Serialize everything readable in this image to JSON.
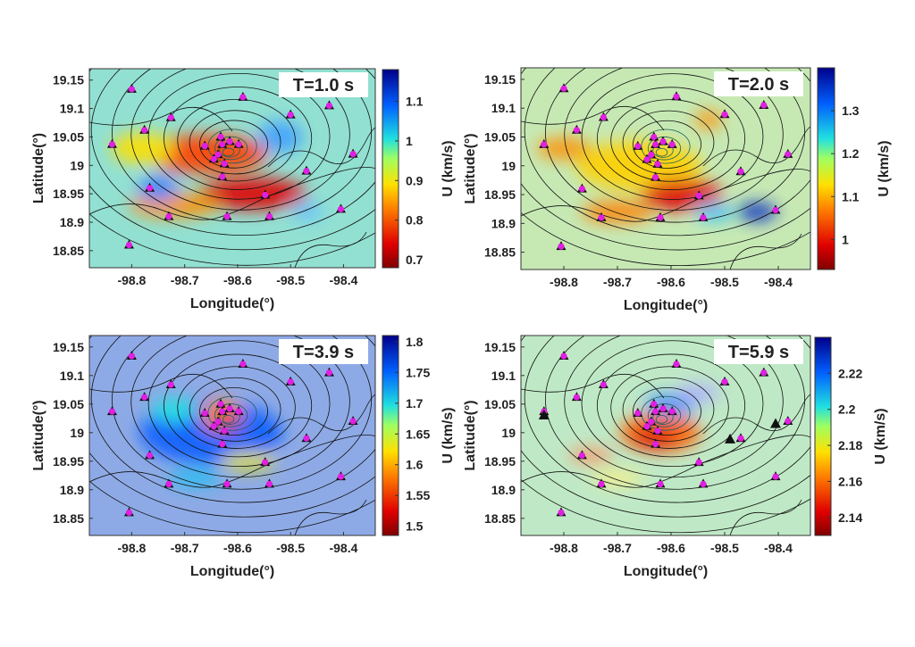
{
  "stations": {
    "lon": [
      -98.8,
      -98.59,
      -98.726,
      -98.776,
      -98.837,
      -98.5,
      -98.427,
      -98.382,
      -98.47,
      -98.548,
      -98.405,
      -98.766,
      -98.73,
      -98.62,
      -98.54,
      -98.805,
      -98.632,
      -98.629,
      -98.615,
      -98.598,
      -98.662,
      -98.637,
      -98.625,
      -98.629,
      -98.645
    ],
    "lat": [
      19.134,
      19.12,
      19.084,
      19.062,
      19.037,
      19.089,
      19.105,
      19.02,
      18.99,
      18.948,
      18.923,
      18.96,
      18.91,
      18.91,
      18.91,
      18.86,
      19.05,
      19.037,
      19.042,
      19.037,
      19.034,
      19.019,
      19.003,
      18.98,
      19.011
    ]
  },
  "chart_data": [
    {
      "type": "map",
      "title": "T=1.0 s",
      "xlabel": "Longitude(°)",
      "ylabel": "Latitude(°)",
      "colorbar_label": "U (km/s)",
      "xlim": [
        -98.88,
        -98.34
      ],
      "ylim": [
        18.82,
        19.17
      ],
      "xticks": [
        -98.8,
        -98.7,
        -98.6,
        -98.5,
        -98.4
      ],
      "yticks": [
        18.85,
        18.9,
        18.95,
        19,
        19.05,
        19.1,
        19.15
      ],
      "clim": [
        0.68,
        1.18
      ],
      "cticks": [
        0.7,
        0.8,
        0.9,
        1,
        1.1
      ],
      "background": "#92e0d2"
    },
    {
      "type": "map",
      "title": "T=2.0 s",
      "xlabel": "Longitude(°)",
      "ylabel": "Latitude(°)",
      "colorbar_label": "U (km/s)",
      "xlim": [
        -98.88,
        -98.34
      ],
      "ylim": [
        18.82,
        19.17
      ],
      "xticks": [
        -98.8,
        -98.7,
        -98.6,
        -98.5,
        -98.4
      ],
      "yticks": [
        18.85,
        18.9,
        18.95,
        19,
        19.05,
        19.1,
        19.15
      ],
      "clim": [
        0.93,
        1.4
      ],
      "cticks": [
        1,
        1.1,
        1.2,
        1.3
      ],
      "background": "#c6e9b4"
    },
    {
      "type": "map",
      "title": "T=3.9 s",
      "xlabel": "Longitude(°)",
      "ylabel": "Latitude(°)",
      "colorbar_label": "U (km/s)",
      "xlim": [
        -98.88,
        -98.34
      ],
      "ylim": [
        18.82,
        19.17
      ],
      "xticks": [
        -98.8,
        -98.7,
        -98.6,
        -98.5,
        -98.4
      ],
      "yticks": [
        18.85,
        18.9,
        18.95,
        19,
        19.05,
        19.1,
        19.15
      ],
      "clim": [
        1.485,
        1.81
      ],
      "cticks": [
        1.5,
        1.55,
        1.6,
        1.65,
        1.7,
        1.75,
        1.8
      ],
      "background": "#8eaae6"
    },
    {
      "type": "map",
      "title": "T=5.9 s",
      "xlabel": "Longitude(°)",
      "ylabel": "Latitude(°)",
      "colorbar_label": "U (km/s)",
      "xlim": [
        -98.88,
        -98.34
      ],
      "ylim": [
        18.82,
        19.17
      ],
      "xticks": [
        -98.8,
        -98.7,
        -98.6,
        -98.5,
        -98.4
      ],
      "yticks": [
        18.85,
        18.9,
        18.95,
        19,
        19.05,
        19.1,
        19.15
      ],
      "clim": [
        2.13,
        2.24
      ],
      "cticks": [
        2.14,
        2.16,
        2.18,
        2.2,
        2.22
      ],
      "background": "#bfe9c6",
      "triangles": {
        "lon": [
          -98.837,
          -98.49,
          -98.405
        ],
        "lat": [
          19.031,
          18.989,
          19.016
        ]
      }
    }
  ]
}
